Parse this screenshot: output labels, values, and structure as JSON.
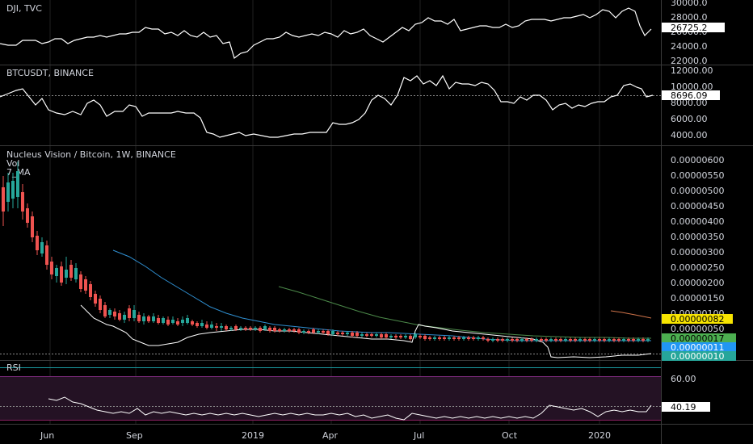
{
  "colors": {
    "background": "#000000",
    "grid": "#1f1f1f",
    "separator": "#3a3a3a",
    "axis_text": "#d1d4dc",
    "line": "#ffffff",
    "candle_up": "#26a69a",
    "candle_down": "#ef5350",
    "ma_blue": "#2f8fd1",
    "ma_green": "#4c8a4a",
    "ma_orange": "#d0744a",
    "rsi_band": "#241224",
    "rsi_line": "#ffffff",
    "rsi_upper": "#7b2a7b",
    "rsi_lower": "#8a2060"
  },
  "panels": {
    "dji": {
      "title": "DJI, TVC",
      "last_value": "26725.2",
      "ticks": [
        "30000.0",
        "28000.0",
        "26000.0",
        "24000.0",
        "22000.0"
      ]
    },
    "btc": {
      "title": "BTCUSDT, BINANCE",
      "last_value": "8696.09",
      "ticks": [
        "12000.00",
        "10000.00",
        "8000.00",
        "6000.00",
        "4000.00"
      ]
    },
    "main": {
      "title": "Nucleus Vision / Bitcoin, 1W, BINANCE",
      "sub1": "Vol",
      "sub2": "7_MA",
      "ticks": [
        "0.00000600",
        "0.00000550",
        "0.00000500",
        "0.00000450",
        "0.00000400",
        "0.00000350",
        "0.00000300",
        "0.00000250",
        "0.00000200",
        "0.00000150",
        "0.00000100",
        "0.00000050"
      ],
      "badges": [
        {
          "label": "0.00000082",
          "bg": "#f7e400",
          "fg": "#000000"
        },
        {
          "label": "0.00000017",
          "bg": "#4caf50",
          "fg": "#000000"
        },
        {
          "label": "0.00000011",
          "bg": "#2196f3",
          "fg": "#ffffff"
        },
        {
          "label": "0.00000010",
          "bg": "#26a69a",
          "fg": "#ffffff"
        }
      ]
    },
    "rsi": {
      "title": "RSI",
      "ticks": [
        "60.00"
      ],
      "last_value": "40.19"
    }
  },
  "x_axis": [
    "Jun",
    "Sep",
    "2019",
    "Apr",
    "Jul",
    "Oct",
    "2020"
  ]
}
